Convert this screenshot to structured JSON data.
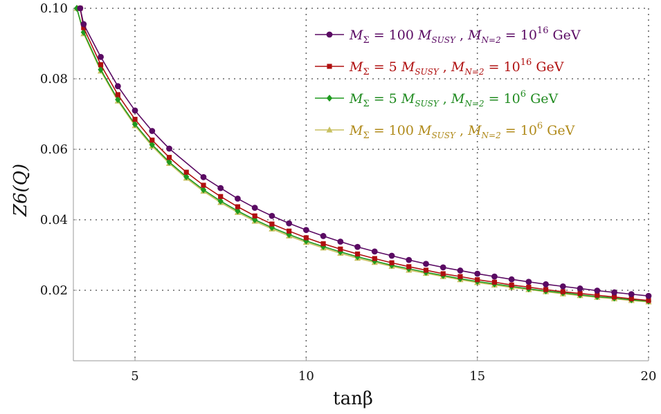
{
  "chart_data": {
    "type": "line",
    "xlabel": "tanβ",
    "ylabel": "Z6(Q)",
    "xlim": [
      3.2,
      20
    ],
    "ylim": [
      0.0,
      0.1
    ],
    "x_ticks": [
      5,
      10,
      15,
      20
    ],
    "y_ticks": [
      0.02,
      0.04,
      0.06,
      0.08,
      0.1
    ],
    "x_tick_labels": [
      "5",
      "10",
      "15",
      "20"
    ],
    "y_tick_labels": [
      "0.02",
      "0.04",
      "0.06",
      "0.08",
      "0.10"
    ],
    "grid": true,
    "legend_position": "top-right",
    "series": [
      {
        "name": "M_Σ = 100 M_SUSY , M_N=2 = 10^16 GeV",
        "color": "#5a0a63",
        "marker": "circle",
        "x": [
          3.4,
          3.5,
          4.0,
          4.5,
          5.0,
          5.5,
          6.0,
          7.0,
          7.5,
          8.0,
          8.5,
          9.0,
          9.5,
          10.0,
          10.5,
          11.0,
          11.5,
          12.0,
          12.5,
          13.0,
          13.5,
          14.0,
          14.5,
          15.0,
          15.5,
          16.0,
          16.5,
          17.0,
          17.5,
          18.0,
          18.5,
          19.0,
          19.5,
          20.0
        ],
        "y": [
          0.1,
          0.0955,
          0.0862,
          0.0779,
          0.071,
          0.0652,
          0.0602,
          0.0521,
          0.049,
          0.046,
          0.0434,
          0.0411,
          0.039,
          0.0371,
          0.0354,
          0.0338,
          0.0323,
          0.031,
          0.0298,
          0.0286,
          0.0275,
          0.0265,
          0.0256,
          0.0247,
          0.0239,
          0.0231,
          0.0224,
          0.0217,
          0.0211,
          0.0205,
          0.0199,
          0.0194,
          0.0189,
          0.0184
        ]
      },
      {
        "name": "M_Σ = 5 M_SUSY , M_N=2 = 10^16 GeV",
        "color": "#b01010",
        "marker": "square",
        "x": [
          3.4,
          3.5,
          4.0,
          4.5,
          5.0,
          5.5,
          6.0,
          6.5,
          7.0,
          7.5,
          8.0,
          8.5,
          9.0,
          9.5,
          10.0,
          10.5,
          11.0,
          11.5,
          12.0,
          12.5,
          13.0,
          13.5,
          14.0,
          14.5,
          15.0,
          15.5,
          16.0,
          16.5,
          17.0,
          17.5,
          18.0,
          18.5,
          19.0,
          19.5,
          20.0
        ],
        "y": [
          0.1,
          0.0945,
          0.084,
          0.0755,
          0.0685,
          0.0626,
          0.0577,
          0.0535,
          0.0498,
          0.0466,
          0.0437,
          0.0411,
          0.0388,
          0.0368,
          0.0349,
          0.0332,
          0.0317,
          0.0303,
          0.029,
          0.0278,
          0.0267,
          0.0257,
          0.0247,
          0.0239,
          0.023,
          0.0223,
          0.0215,
          0.0209,
          0.0202,
          0.0196,
          0.0191,
          0.0186,
          0.0181,
          0.0176,
          0.0171
        ]
      },
      {
        "name": "M_Σ = 5 M_SUSY , M_N=2 = 10^6 GeV",
        "color": "#1f9a1f",
        "marker": "diamond",
        "x": [
          3.3,
          3.5,
          4.0,
          4.5,
          5.0,
          5.5,
          6.0,
          6.5,
          7.0,
          7.5,
          8.0,
          8.5,
          9.0,
          9.5,
          10.0,
          10.5,
          11.0,
          11.5,
          12.0,
          12.5,
          13.0,
          13.5,
          14.0,
          14.5,
          15.0,
          15.5,
          16.0,
          16.5,
          17.0,
          17.5,
          18.0,
          18.5,
          19.0,
          19.5,
          20.0
        ],
        "y": [
          0.1,
          0.0932,
          0.0826,
          0.0741,
          0.0671,
          0.0613,
          0.0564,
          0.0522,
          0.0485,
          0.0453,
          0.0425,
          0.04,
          0.0378,
          0.0358,
          0.034,
          0.0324,
          0.0309,
          0.0295,
          0.0283,
          0.0271,
          0.0261,
          0.0251,
          0.0242,
          0.0233,
          0.0225,
          0.0218,
          0.0211,
          0.0204,
          0.0198,
          0.0193,
          0.0187,
          0.0182,
          0.0178,
          0.0173,
          0.0169
        ]
      },
      {
        "name": "M_Σ = 100 M_SUSY , M_N=2 = 10^6 GeV",
        "color": "#c8c060",
        "marker": "triangle",
        "x": [
          3.3,
          3.5,
          4.0,
          4.5,
          5.0,
          5.5,
          6.0,
          6.5,
          7.0,
          7.5,
          8.0,
          8.5,
          9.0,
          9.5,
          10.0,
          10.5,
          11.0,
          11.5,
          12.0,
          12.5,
          13.0,
          13.5,
          14.0,
          14.5,
          15.0,
          15.5,
          16.0,
          16.5,
          17.0,
          17.5,
          18.0,
          18.5,
          19.0,
          19.5,
          20.0
        ],
        "y": [
          0.1,
          0.0928,
          0.0822,
          0.0737,
          0.0667,
          0.0609,
          0.056,
          0.0518,
          0.0481,
          0.0449,
          0.0421,
          0.0396,
          0.0374,
          0.0354,
          0.0336,
          0.032,
          0.0305,
          0.0291,
          0.0279,
          0.0268,
          0.0257,
          0.0248,
          0.0239,
          0.023,
          0.0222,
          0.0215,
          0.0208,
          0.0202,
          0.0196,
          0.019,
          0.0185,
          0.018,
          0.0176,
          0.0171,
          0.0167
        ]
      }
    ]
  },
  "legend": [
    {
      "sym": "M",
      "sub_sym": "Σ",
      "coef": "100",
      "susy_sym": "M",
      "susy_sub": "SUSY",
      "n_sym": "M",
      "n_sub": "N=2",
      "base": "10",
      "exp": "16",
      "unit": "GeV",
      "text_color": "#5a0a63"
    },
    {
      "sym": "M",
      "sub_sym": "Σ",
      "coef": "5",
      "susy_sym": "M",
      "susy_sub": "SUSY",
      "n_sym": "M",
      "n_sub": "N=2",
      "base": "10",
      "exp": "16",
      "unit": "GeV",
      "text_color": "#b01010"
    },
    {
      "sym": "M",
      "sub_sym": "Σ",
      "coef": "5",
      "susy_sym": "M",
      "susy_sub": "SUSY",
      "n_sym": "M",
      "n_sub": "N=2",
      "base": "10",
      "exp": "6",
      "unit": "GeV",
      "text_color": "#1f8a1f"
    },
    {
      "sym": "M",
      "sub_sym": "Σ",
      "coef": "100",
      "susy_sym": "M",
      "susy_sub": "SUSY",
      "n_sym": "M",
      "n_sub": "N=2",
      "base": "10",
      "exp": "6",
      "unit": "GeV",
      "text_color": "#b08a1a"
    }
  ]
}
